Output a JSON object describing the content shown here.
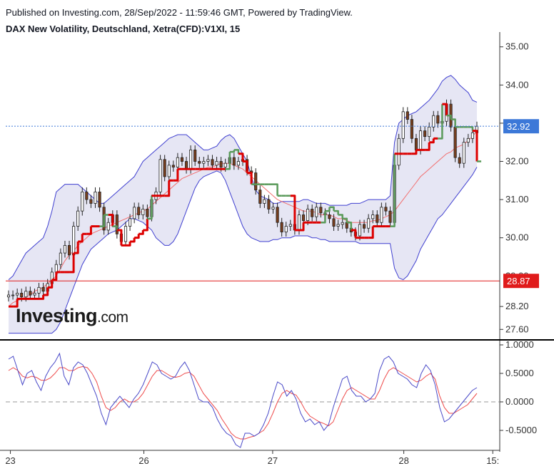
{
  "header": {
    "published": "Published on Investing.com, 28/Sep/2022 - 11:59:46 GMT, Powered by TradingView.",
    "title": "DAX New Volatility, Deutschland, Xetra(CFD):V1XI, 15"
  },
  "logo": {
    "text": "Investing",
    "suffix": ".com"
  },
  "colors": {
    "candle_up": "#2e6b3a",
    "candle_down": "#7a3f1e",
    "supertrend_up": "#dd0000",
    "supertrend_down": "#5a9a5a",
    "band_fill": "#e6e6f4",
    "band_line": "#3f3fd0",
    "sma": "#f26d6d",
    "osc_main": "#4a4ac8",
    "osc_signal": "#ee4b4b",
    "last_price": "#3c78d8",
    "red_level": "#e01b1b"
  },
  "chart_data": [
    {
      "type": "candlestick",
      "title": "DAX New Volatility, Deutschland, Xetra(CFD):V1XI, 15",
      "y_ticks": [
        "35.00",
        "34.00",
        "33.00",
        "32.00",
        "31.00",
        "30.00",
        "28.20",
        "27.60"
      ],
      "hidden_tick": "29.00",
      "ylim": [
        27.4,
        35.2
      ],
      "last_price": {
        "value": 32.92,
        "label": "32.92"
      },
      "level_line": {
        "value": 28.87,
        "label": "28.87"
      },
      "x_labels": [
        {
          "label": "23",
          "pos": 0.01
        },
        {
          "label": "26",
          "pos": 0.295
        },
        {
          "label": "27",
          "pos": 0.57
        },
        {
          "label": "28",
          "pos": 0.85
        },
        {
          "label": "15:",
          "pos": 1.04
        }
      ],
      "series": [
        {
          "name": "Close",
          "values": [
            28.5,
            28.5,
            28.55,
            28.45,
            28.6,
            28.5,
            28.55,
            28.7,
            28.6,
            28.8,
            29.1,
            29.3,
            29.6,
            29.8,
            29.55,
            30.3,
            30.7,
            31.2,
            31.0,
            30.9,
            31.2,
            30.8,
            30.2,
            30.4,
            30.6,
            30.1,
            29.9,
            30.3,
            30.5,
            30.8,
            30.6,
            30.75,
            30.55,
            31.0,
            31.2,
            32.05,
            31.6,
            31.9,
            31.85,
            32.1,
            32.0,
            31.8,
            32.3,
            32.0,
            31.95,
            32.0,
            32.05,
            31.9,
            32.0,
            31.85,
            31.95,
            32.1,
            31.9,
            32.0,
            32.05,
            31.75,
            31.7,
            31.25,
            30.9,
            31.0,
            30.75,
            30.8,
            30.4,
            30.15,
            30.3,
            30.35,
            30.2,
            30.6,
            30.45,
            30.75,
            30.55,
            30.8,
            30.65,
            30.6,
            30.5,
            30.3,
            30.35,
            30.4,
            30.25,
            30.15,
            30.05,
            30.35,
            30.25,
            30.5,
            30.6,
            30.4,
            30.8,
            30.7,
            30.4,
            31.9,
            32.6,
            33.3,
            33.1,
            32.6,
            32.3,
            32.8,
            32.65,
            32.9,
            33.2,
            33.0,
            33.05,
            33.5,
            32.9,
            32.1,
            31.95,
            32.5,
            32.6,
            32.75,
            32.92
          ]
        },
        {
          "name": "Supertrend",
          "values": [
            28.2,
            28.2,
            28.4,
            28.4,
            28.4,
            28.4,
            28.4,
            28.4,
            28.5,
            28.7,
            28.9,
            29.1,
            29.1,
            29.1,
            29.1,
            29.6,
            29.9,
            30.1,
            30.1,
            30.3,
            30.3,
            30.3,
            30.6,
            30.6,
            30.3,
            30.2,
            29.8,
            29.8,
            29.9,
            30.0,
            30.1,
            30.2,
            30.5,
            31.1,
            31.1,
            31.1,
            31.1,
            31.5,
            31.5,
            31.8,
            31.8,
            31.8,
            31.8,
            31.8,
            31.8,
            31.8,
            31.8,
            31.8,
            31.8,
            31.8,
            31.8,
            32.25,
            32.3,
            32.2,
            32.0,
            31.7,
            31.4,
            31.4,
            31.4,
            31.4,
            31.4,
            31.4,
            31.1,
            31.1,
            31.1,
            31.1,
            30.2,
            30.2,
            30.4,
            30.4,
            30.4,
            30.4,
            30.4,
            30.7,
            30.8,
            30.7,
            30.6,
            30.5,
            30.4,
            30.2,
            30.0,
            30.0,
            30.0,
            30.0,
            30.3,
            30.3,
            30.3,
            30.3,
            30.3,
            32.2,
            32.2,
            32.2,
            32.2,
            32.2,
            32.3,
            32.3,
            32.3,
            32.5,
            32.6,
            32.6,
            33.5,
            33.2,
            33.1,
            32.9,
            32.9,
            32.9,
            32.9,
            32.8,
            32.0,
            32.0
          ]
        },
        {
          "name": "Upper Band",
          "values": [
            28.9,
            29.0,
            29.2,
            29.4,
            29.6,
            29.7,
            29.8,
            29.9,
            30.0,
            30.3,
            30.7,
            31.2,
            31.3,
            31.4,
            31.4,
            31.4,
            31.4,
            31.3,
            31.2,
            31.1,
            31.0,
            30.9,
            30.9,
            31.0,
            31.1,
            31.2,
            31.3,
            31.4,
            31.5,
            31.6,
            31.8,
            32.0,
            32.1,
            32.2,
            32.3,
            32.4,
            32.5,
            32.6,
            32.65,
            32.7,
            32.7,
            32.7,
            32.6,
            32.5,
            32.4,
            32.3,
            32.3,
            32.35,
            32.4,
            32.55,
            32.65,
            32.7,
            32.6,
            32.4,
            32.2,
            32.0,
            31.6,
            31.25,
            31.1,
            31.05,
            31.0,
            30.9,
            30.9,
            30.95,
            30.95,
            30.95,
            30.95,
            30.95,
            31.0,
            31.0,
            30.95,
            30.9,
            30.9,
            30.9,
            30.85,
            30.85,
            30.85,
            30.85,
            30.85,
            30.9,
            30.9,
            30.9,
            30.95,
            31.0,
            31.0,
            31.0,
            31.0,
            31.0,
            31.1,
            32.5,
            33.0,
            33.1,
            33.2,
            33.25,
            33.3,
            33.4,
            33.5,
            33.6,
            33.75,
            33.9,
            34.1,
            34.2,
            34.25,
            34.15,
            34.0,
            33.9,
            33.8,
            33.6,
            33.55
          ]
        },
        {
          "name": "Middle Band",
          "values": [
            28.2,
            28.3,
            28.35,
            28.4,
            28.45,
            28.5,
            28.6,
            28.65,
            28.7,
            28.8,
            28.9,
            29.0,
            29.2,
            29.4,
            29.55,
            29.65,
            29.8,
            29.9,
            30.0,
            30.1,
            30.15,
            30.2,
            30.25,
            30.3,
            30.35,
            30.4,
            30.45,
            30.5,
            30.55,
            30.6,
            30.65,
            30.7,
            30.75,
            30.85,
            30.95,
            31.05,
            31.15,
            31.25,
            31.35,
            31.45,
            31.55,
            31.6,
            31.65,
            31.7,
            31.75,
            31.8,
            31.85,
            31.85,
            31.9,
            31.95,
            31.95,
            31.95,
            31.9,
            31.85,
            31.8,
            31.7,
            31.6,
            31.5,
            31.4,
            31.3,
            31.2,
            31.1,
            31.0,
            30.95,
            30.9,
            30.85,
            30.8,
            30.75,
            30.7,
            30.7,
            30.7,
            30.65,
            30.6,
            30.6,
            30.6,
            30.55,
            30.5,
            30.5,
            30.45,
            30.4,
            30.4,
            30.4,
            30.4,
            30.4,
            30.45,
            30.45,
            30.5,
            30.55,
            30.6,
            30.7,
            30.85,
            31.0,
            31.15,
            31.3,
            31.45,
            31.6,
            31.7,
            31.8,
            31.9,
            32.0,
            32.1,
            32.2,
            32.25,
            32.35,
            32.4,
            32.45,
            32.55,
            32.65,
            32.8
          ]
        },
        {
          "name": "Lower Band",
          "values": [
            27.5,
            27.5,
            27.5,
            27.5,
            27.5,
            27.5,
            27.5,
            27.5,
            27.5,
            27.5,
            27.5,
            27.6,
            27.8,
            28.1,
            28.4,
            28.7,
            29.0,
            29.3,
            29.5,
            29.7,
            29.8,
            29.9,
            30.0,
            30.1,
            30.15,
            30.2,
            30.3,
            30.4,
            30.5,
            30.5,
            30.45,
            30.4,
            30.3,
            30.2,
            30.0,
            29.9,
            29.8,
            29.8,
            29.9,
            30.1,
            30.4,
            30.7,
            31.0,
            31.3,
            31.5,
            31.6,
            31.65,
            31.7,
            31.75,
            31.7,
            31.5,
            31.2,
            30.9,
            30.6,
            30.3,
            30.1,
            30.0,
            29.95,
            29.9,
            29.9,
            29.9,
            29.95,
            29.95,
            30.0,
            30.0,
            30.0,
            30.05,
            30.05,
            30.05,
            30.05,
            30.0,
            30.0,
            29.95,
            29.95,
            29.9,
            29.9,
            29.9,
            29.9,
            29.9,
            29.9,
            29.9,
            29.85,
            29.85,
            29.85,
            29.85,
            29.85,
            29.85,
            29.85,
            29.85,
            29.2,
            28.95,
            28.9,
            29.0,
            29.2,
            29.4,
            29.7,
            29.9,
            30.1,
            30.3,
            30.5,
            30.6,
            30.75,
            30.9,
            31.05,
            31.2,
            31.35,
            31.5,
            31.65,
            31.85
          ]
        }
      ]
    },
    {
      "type": "line",
      "y_ticks": [
        "1.0000",
        "0.5000",
        "0.0000",
        "-0.5000"
      ],
      "ylim": [
        -0.85,
        1.05
      ],
      "zero_line": 0,
      "series": [
        {
          "name": "Main",
          "values": [
            0.75,
            0.8,
            0.55,
            0.3,
            0.5,
            0.55,
            0.35,
            0.2,
            0.45,
            0.6,
            0.7,
            0.85,
            0.45,
            0.3,
            0.6,
            0.7,
            0.65,
            0.5,
            0.3,
            0.1,
            -0.2,
            -0.4,
            -0.1,
            0.0,
            0.1,
            0.0,
            -0.1,
            0.05,
            0.15,
            0.3,
            0.5,
            0.7,
            0.65,
            0.5,
            0.45,
            0.4,
            0.45,
            0.6,
            0.7,
            0.55,
            0.3,
            0.05,
            0.0,
            0.0,
            -0.1,
            -0.3,
            -0.45,
            -0.55,
            -0.6,
            -0.75,
            -0.8,
            -0.55,
            -0.55,
            -0.6,
            -0.55,
            -0.4,
            -0.2,
            0.1,
            0.35,
            0.3,
            0.1,
            0.2,
            0.05,
            -0.2,
            -0.35,
            -0.3,
            -0.4,
            -0.35,
            -0.5,
            -0.4,
            -0.1,
            0.15,
            0.4,
            0.45,
            0.2,
            0.1,
            0.1,
            0.0,
            0.05,
            0.15,
            0.55,
            0.75,
            0.8,
            0.7,
            0.5,
            0.45,
            0.4,
            0.3,
            0.25,
            0.5,
            0.65,
            0.55,
            0.3,
            -0.1,
            -0.35,
            -0.3,
            -0.2,
            -0.1,
            0.0,
            0.1,
            0.2,
            0.25
          ]
        },
        {
          "name": "Signal",
          "values": [
            0.55,
            0.6,
            0.55,
            0.45,
            0.42,
            0.45,
            0.43,
            0.38,
            0.38,
            0.42,
            0.5,
            0.6,
            0.6,
            0.55,
            0.55,
            0.6,
            0.62,
            0.6,
            0.5,
            0.35,
            0.1,
            -0.1,
            -0.15,
            -0.1,
            0.0,
            0.05,
            0.0,
            0.0,
            0.05,
            0.15,
            0.3,
            0.45,
            0.55,
            0.55,
            0.5,
            0.45,
            0.43,
            0.45,
            0.5,
            0.52,
            0.45,
            0.3,
            0.15,
            0.05,
            -0.05,
            -0.15,
            -0.3,
            -0.42,
            -0.55,
            -0.62,
            -0.65,
            -0.65,
            -0.62,
            -0.6,
            -0.55,
            -0.5,
            -0.38,
            -0.2,
            0.0,
            0.15,
            0.2,
            0.15,
            0.12,
            0.0,
            -0.15,
            -0.25,
            -0.3,
            -0.35,
            -0.38,
            -0.42,
            -0.35,
            -0.15,
            0.05,
            0.2,
            0.25,
            0.2,
            0.15,
            0.1,
            0.05,
            0.05,
            0.2,
            0.4,
            0.55,
            0.6,
            0.55,
            0.5,
            0.45,
            0.4,
            0.35,
            0.38,
            0.45,
            0.5,
            0.4,
            0.1,
            -0.1,
            -0.2,
            -0.2,
            -0.15,
            -0.1,
            -0.05,
            0.05,
            0.15
          ]
        }
      ]
    }
  ]
}
